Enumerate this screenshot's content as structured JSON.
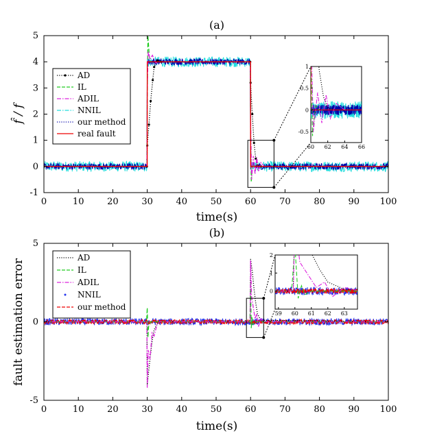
{
  "chart_data": [
    {
      "panel": "a",
      "type": "line",
      "title": "(a)",
      "xlabel": "time(s)",
      "ylabel": "f̂ / f",
      "xlim": [
        0,
        100
      ],
      "ylim": [
        -1,
        5
      ],
      "xticks": [
        0,
        10,
        20,
        30,
        40,
        50,
        60,
        70,
        80,
        90,
        100
      ],
      "yticks": [
        -1,
        0,
        1,
        2,
        3,
        4,
        5
      ],
      "legend_position": "middle-left",
      "series": [
        {
          "name": "AD",
          "color": "#000000",
          "style": "dotted-marker",
          "x": [
            0,
            29.9,
            30,
            30.5,
            31,
            31.6,
            32,
            33,
            34,
            59.9,
            60,
            60.5,
            61,
            61.5,
            62,
            63,
            100
          ],
          "y": [
            0,
            0,
            0.8,
            1.6,
            2.5,
            3.3,
            3.8,
            4.05,
            4.0,
            4.0,
            3.2,
            2.0,
            0.9,
            0.3,
            0.05,
            0,
            0
          ]
        },
        {
          "name": "IL",
          "color": "#22cc22",
          "style": "dashed",
          "x": [
            0,
            29.9,
            30,
            30.2,
            30.4,
            30.6,
            31,
            59.9,
            60,
            60.2,
            60.4,
            60.6,
            61,
            100
          ],
          "y": [
            0,
            0,
            2.5,
            5.0,
            4.6,
            4.2,
            4.0,
            4.0,
            1.5,
            -0.6,
            -0.2,
            0.1,
            0,
            0
          ]
        },
        {
          "name": "ADIL",
          "color": "#dd22dd",
          "style": "dashdot",
          "x": [
            0,
            29.9,
            30,
            30.3,
            30.8,
            31.5,
            32.5,
            33.5,
            59.9,
            60,
            60.3,
            60.8,
            61.3,
            61.8,
            62.3,
            63,
            64,
            100
          ],
          "y": [
            0,
            0,
            3.0,
            4.4,
            4.1,
            4.25,
            3.95,
            4.0,
            4.0,
            2.0,
            -0.5,
            0.4,
            -0.3,
            0.35,
            -0.2,
            0.15,
            0,
            0
          ]
        },
        {
          "name": "NNIL",
          "color": "#22dddd",
          "style": "dashdot-noisy",
          "noise_amplitude": 0.2,
          "x": [
            0,
            29.9,
            30,
            59.9,
            60,
            100
          ],
          "y": [
            0,
            0,
            4,
            4,
            0,
            0
          ]
        },
        {
          "name": "our method",
          "color": "#0000aa",
          "style": "dotted-noisy",
          "noise_amplitude": 0.12,
          "x": [
            0,
            29.9,
            30,
            59.9,
            60,
            100
          ],
          "y": [
            0,
            0,
            4,
            4,
            0,
            0
          ]
        },
        {
          "name": "real fault",
          "color": "#ee0000",
          "style": "solid",
          "x": [
            0,
            30,
            30,
            60,
            60,
            100
          ],
          "y": [
            0,
            0,
            4,
            4,
            0,
            0
          ]
        }
      ],
      "inset": {
        "xlim": [
          60,
          66
        ],
        "ylim": [
          -0.75,
          1
        ],
        "xticks": [
          60,
          62,
          64,
          66
        ],
        "yticks": [
          -0.5,
          0,
          0.5,
          1
        ],
        "zoom_box": {
          "x": [
            59.2,
            66.8
          ],
          "y": [
            -0.8,
            1.0
          ]
        }
      }
    },
    {
      "panel": "b",
      "type": "line",
      "title": "(b)",
      "xlabel": "time(s)",
      "ylabel": "fault estimation error",
      "xlim": [
        0,
        100
      ],
      "ylim": [
        -5,
        5
      ],
      "xticks": [
        0,
        10,
        20,
        30,
        40,
        50,
        60,
        70,
        80,
        90,
        100
      ],
      "yticks": [
        -5,
        0,
        5
      ],
      "legend_position": "top-left",
      "series": [
        {
          "name": "AD",
          "color": "#000000",
          "style": "dotted",
          "x": [
            0,
            29.9,
            30,
            30.5,
            31,
            31.5,
            32,
            33,
            34,
            59.9,
            60,
            60.5,
            61,
            61.5,
            62,
            63,
            100
          ],
          "y": [
            0,
            0,
            -4.0,
            -3.0,
            -2.0,
            -1.1,
            -0.5,
            -0.1,
            0,
            0,
            4.0,
            3.2,
            2.1,
            1.2,
            0.5,
            0.1,
            0
          ]
        },
        {
          "name": "IL",
          "color": "#22cc22",
          "style": "dashed",
          "x": [
            0,
            29.8,
            30,
            30.2,
            30.4,
            31,
            59.8,
            60,
            60.2,
            60.4,
            60.6,
            61,
            100
          ],
          "y": [
            0,
            0,
            0.9,
            -1.0,
            -0.3,
            0,
            0,
            2.5,
            -0.4,
            0.3,
            -0.2,
            0,
            0
          ]
        },
        {
          "name": "ADIL",
          "color": "#dd22dd",
          "style": "dashdot",
          "x": [
            0,
            29.9,
            30,
            30.3,
            30.8,
            31.4,
            32,
            32.8,
            33.6,
            59.9,
            60,
            60.3,
            60.8,
            61.3,
            61.8,
            62.3,
            63,
            64,
            100
          ],
          "y": [
            0,
            0,
            -4.2,
            -1.8,
            -2.4,
            -0.7,
            -0.9,
            -0.2,
            0,
            0,
            3.9,
            1.6,
            0.9,
            0.2,
            0.5,
            -0.3,
            0.2,
            0,
            0
          ]
        },
        {
          "name": "NNIL",
          "color": "#2233ee",
          "style": "noisy",
          "noise_amplitude": 0.22,
          "x": [
            0,
            100
          ],
          "y": [
            0,
            0
          ]
        },
        {
          "name": "our method",
          "color": "#ee0000",
          "style": "dashed-noisy",
          "noise_amplitude": 0.14,
          "x": [
            0,
            100
          ],
          "y": [
            0,
            0
          ]
        }
      ],
      "inset": {
        "xlim": [
          58.8,
          63.8
        ],
        "ylim": [
          -1,
          2
        ],
        "xticks": [
          59,
          60,
          61,
          62,
          63
        ],
        "yticks": [
          0,
          1,
          2
        ],
        "zoom_box": {
          "x": [
            58.8,
            63.8
          ],
          "y": [
            -1,
            1.5
          ]
        }
      }
    }
  ]
}
